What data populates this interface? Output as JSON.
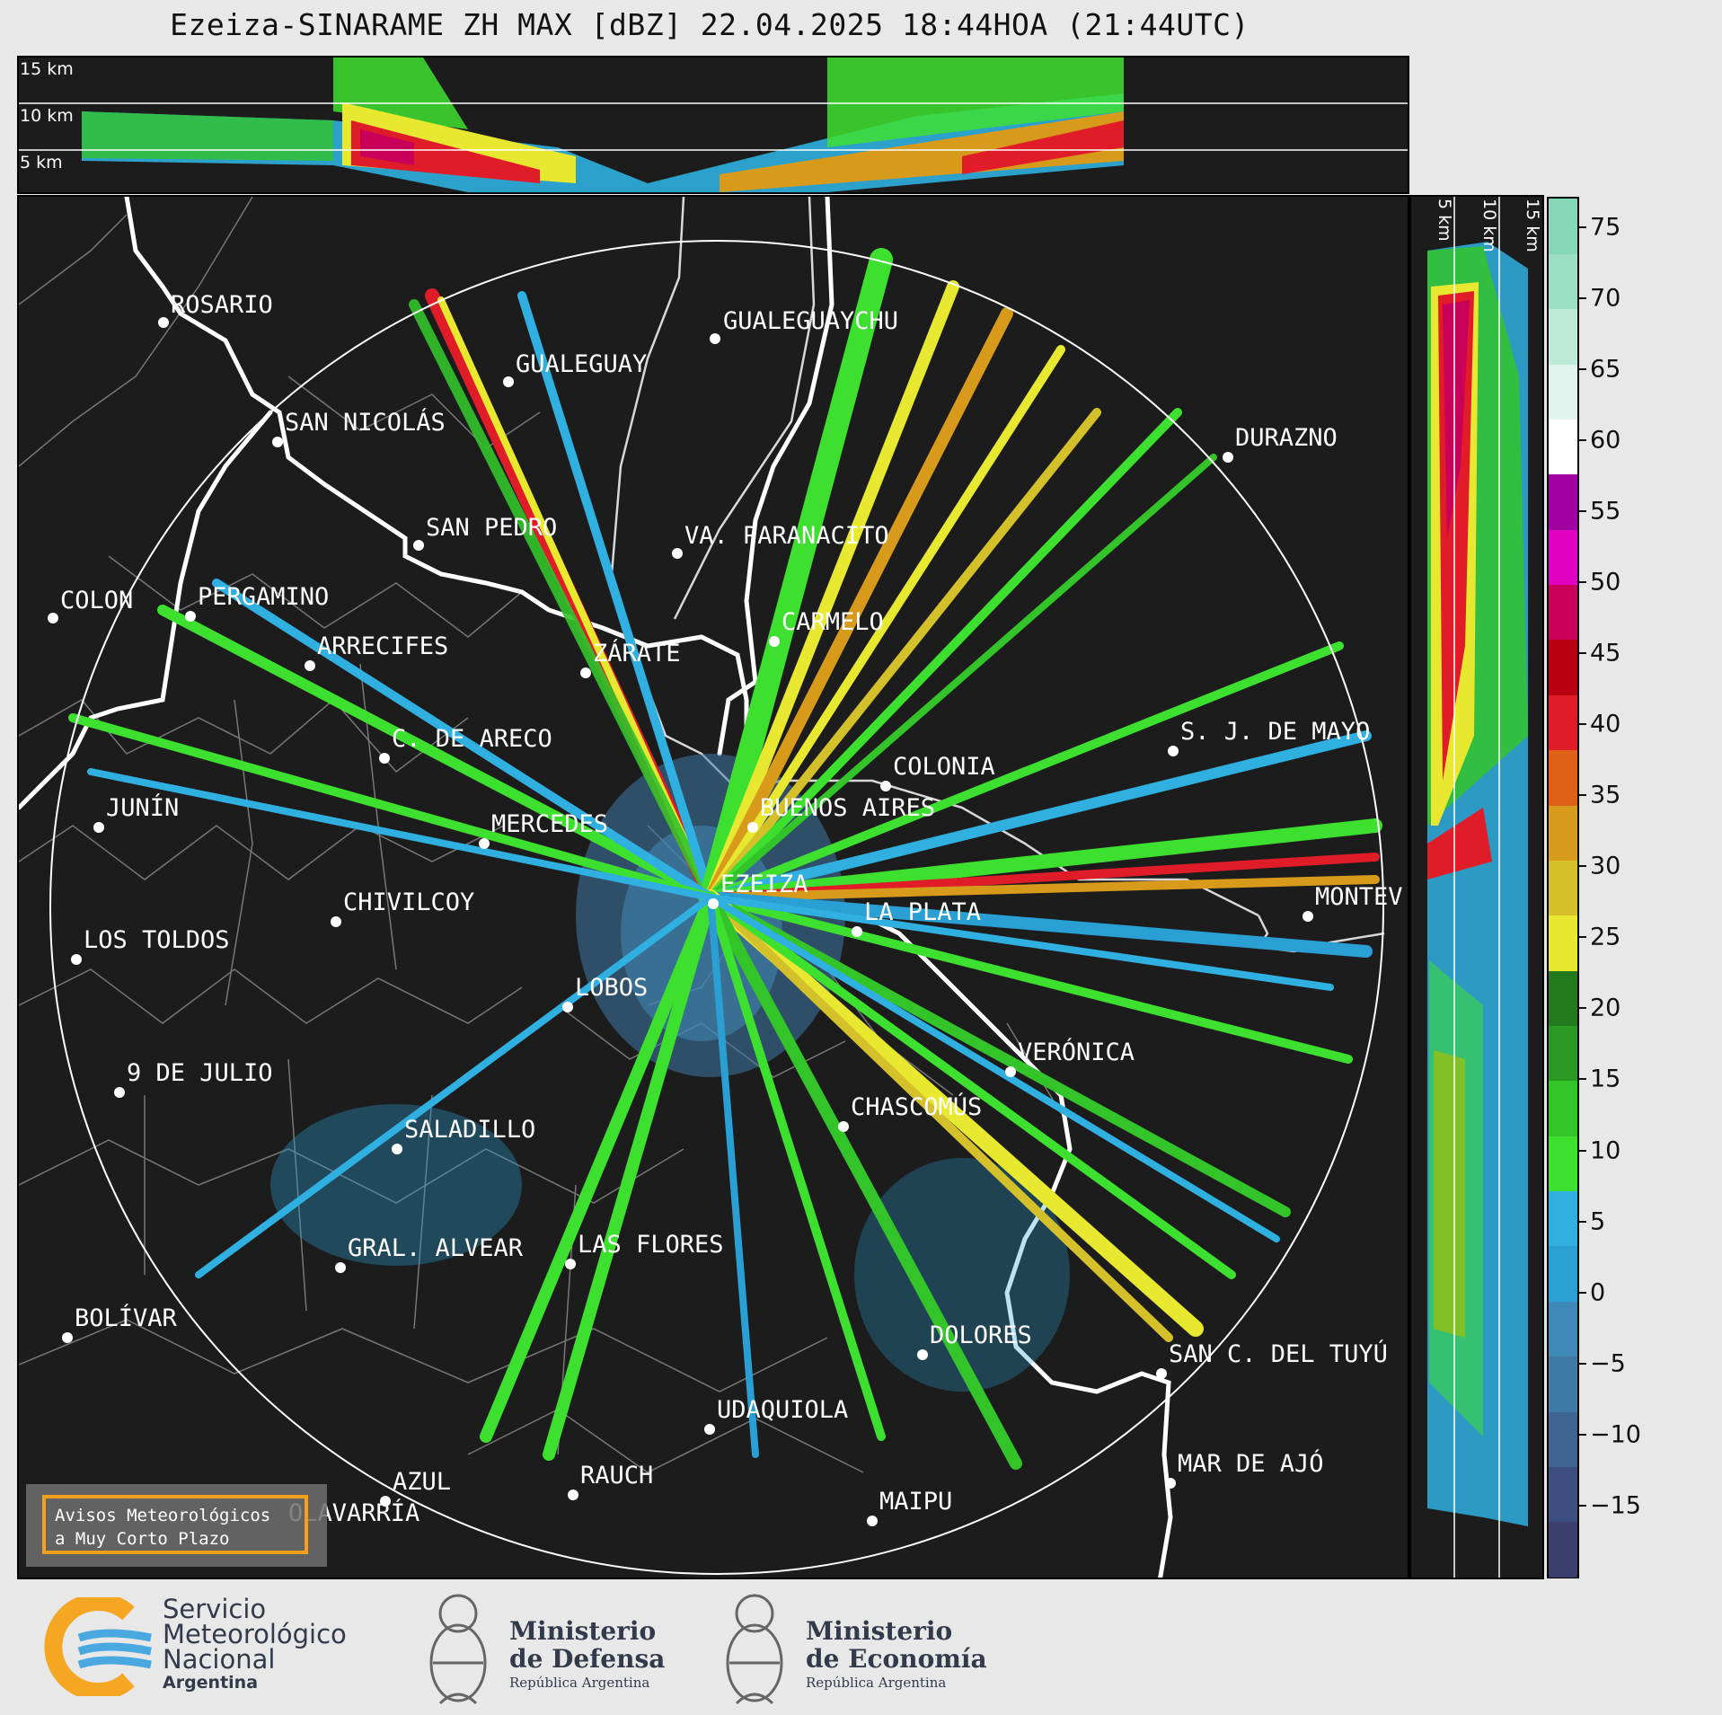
{
  "title": "Ezeiza-SINARAME ZH MAX [dBZ] 22.04.2025 18:44HOA (21:44UTC)",
  "height_labels": {
    "km15": "15 km",
    "km10": "10 km",
    "km5": "5 km"
  },
  "colorbar": {
    "ticks": [
      "75",
      "70",
      "65",
      "60",
      "55",
      "50",
      "45",
      "40",
      "35",
      "30",
      "25",
      "20",
      "15",
      "10",
      "5",
      "0",
      "−5",
      "−10",
      "−15"
    ],
    "min": -20,
    "max": 77,
    "colors": [
      "#3a3f6e",
      "#3d4f80",
      "#3f6492",
      "#3f79a6",
      "#3f8ab8",
      "#2a9fd4",
      "#2fb0e0",
      "#3ee030",
      "#33c42a",
      "#2a9a24",
      "#237a1c",
      "#e8e830",
      "#d4c02a",
      "#d79a1a",
      "#e06018",
      "#e01c28",
      "#b80010",
      "#c8005a",
      "#e000c0",
      "#a000a0",
      "#ffffff",
      "#dff5ee",
      "#bde9d8",
      "#9adfc4",
      "#84d8b8"
    ]
  },
  "cities": [
    {
      "name": "ROSARIO"
    },
    {
      "name": "GUALEGUAYCHU"
    },
    {
      "name": "GUALEGUAY"
    },
    {
      "name": "SAN NICOLÁS"
    },
    {
      "name": "DURAZNO"
    },
    {
      "name": "SAN PEDRO"
    },
    {
      "name": "VA. PARANACITO"
    },
    {
      "name": "COLON"
    },
    {
      "name": "PERGAMINO"
    },
    {
      "name": "CARMELO"
    },
    {
      "name": "ARRECIFES"
    },
    {
      "name": "ZÁRATE"
    },
    {
      "name": "C. DE ARECO"
    },
    {
      "name": "S. J. DE MAYO"
    },
    {
      "name": "COLONIA"
    },
    {
      "name": "JUNÍN"
    },
    {
      "name": "BUENOS AIRES"
    },
    {
      "name": "MERCEDES"
    },
    {
      "name": "EZEIZA"
    },
    {
      "name": "MONTEV"
    },
    {
      "name": "CHIVILCOY"
    },
    {
      "name": "LA PLATA"
    },
    {
      "name": "LOS TOLDOS"
    },
    {
      "name": "LOBOS"
    },
    {
      "name": "VERÓNICA"
    },
    {
      "name": "9 DE JULIO"
    },
    {
      "name": "CHASCOMÚS"
    },
    {
      "name": "SALADILLO"
    },
    {
      "name": "GRAL. ALVEAR"
    },
    {
      "name": "LAS FLORES"
    },
    {
      "name": "BOLÍVAR"
    },
    {
      "name": "DOLORES"
    },
    {
      "name": "SAN C. DEL TUYÚ"
    },
    {
      "name": "UDAQUIOLA"
    },
    {
      "name": "MAR DE AJÓ"
    },
    {
      "name": "AZUL"
    },
    {
      "name": "RAUCH"
    },
    {
      "name": "OLAVARRÍA"
    },
    {
      "name": "MAIPU"
    }
  ],
  "warning": {
    "line1": "Avisos Meteorológicos",
    "line2": "a Muy Corto Plazo"
  },
  "footer": {
    "smn": {
      "line1": "Servicio",
      "line2": "Meteorológico",
      "line3": "Nacional",
      "line4": "Argentina"
    },
    "defensa": {
      "line1": "Ministerio",
      "line2": "de Defensa",
      "line3": "República Argentina"
    },
    "economia": {
      "line1": "Ministerio",
      "line2": "de Economía",
      "line3": "República Argentina"
    }
  }
}
